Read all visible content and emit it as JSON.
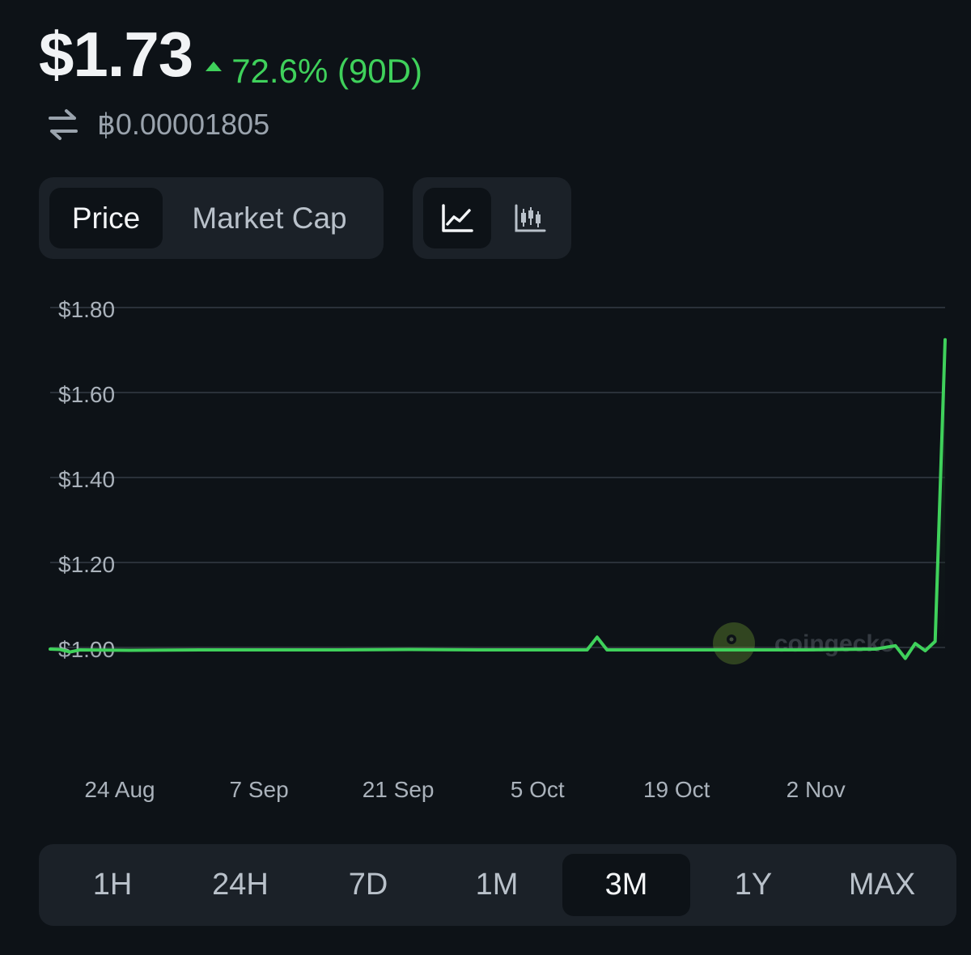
{
  "header": {
    "price": "$1.73",
    "change": "72.6% (90D)",
    "btc_price": "฿0.00001805"
  },
  "tabs": {
    "type": [
      "Price",
      "Market Cap"
    ],
    "active_type": "Price",
    "chart_kind_active": "line"
  },
  "icons": {
    "swap": "swap-arrows-icon",
    "line_chart": "line-chart-icon",
    "candlestick": "candlestick-chart-icon"
  },
  "colors": {
    "up": "#3fd15b",
    "background": "#0d1217",
    "panel": "#1b2128"
  },
  "watermark": "coingecko",
  "ranges": [
    "1H",
    "24H",
    "7D",
    "1M",
    "3M",
    "1Y",
    "MAX"
  ],
  "active_range": "3M",
  "chart_data": {
    "type": "line",
    "title": "",
    "xlabel": "",
    "ylabel": "",
    "ylim": [
      0.8,
      1.8
    ],
    "y_ticks": [
      "$1.80",
      "$1.60",
      "$1.40",
      "$1.20",
      "$1.00"
    ],
    "y_tick_values": [
      1.8,
      1.6,
      1.4,
      1.2,
      1.0
    ],
    "x_ticks": [
      "24 Aug",
      "7 Sep",
      "21 Sep",
      "5 Oct",
      "19 Oct",
      "2 Nov"
    ],
    "x_tick_dates": [
      "2023-08-24",
      "2023-09-07",
      "2023-09-21",
      "2023-10-05",
      "2023-10-19",
      "2023-11-02"
    ],
    "xlim": [
      "2023-08-17",
      "2023-11-15"
    ],
    "grid": true,
    "series": [
      {
        "values": [
          [
            "2023-08-17",
            1.002
          ],
          [
            "2023-08-18",
            1.001
          ],
          [
            "2023-08-19",
            0.995
          ],
          [
            "2023-08-20",
            1.0
          ],
          [
            "2023-08-25",
            0.999
          ],
          [
            "2023-09-01",
            1.0
          ],
          [
            "2023-09-08",
            1.0
          ],
          [
            "2023-09-15",
            1.0
          ],
          [
            "2023-09-22",
            1.001
          ],
          [
            "2023-09-29",
            1.0
          ],
          [
            "2023-10-06",
            1.0
          ],
          [
            "2023-10-10",
            1.0
          ],
          [
            "2023-10-11",
            1.03
          ],
          [
            "2023-10-12",
            1.0
          ],
          [
            "2023-10-18",
            1.0
          ],
          [
            "2023-10-25",
            1.0
          ],
          [
            "2023-11-01",
            1.0
          ],
          [
            "2023-11-08",
            1.002
          ],
          [
            "2023-11-10",
            1.01
          ],
          [
            "2023-11-11",
            0.98
          ],
          [
            "2023-11-12",
            1.015
          ],
          [
            "2023-11-13",
            0.998
          ],
          [
            "2023-11-14",
            1.02
          ],
          [
            "2023-11-15",
            1.73
          ]
        ]
      }
    ]
  }
}
